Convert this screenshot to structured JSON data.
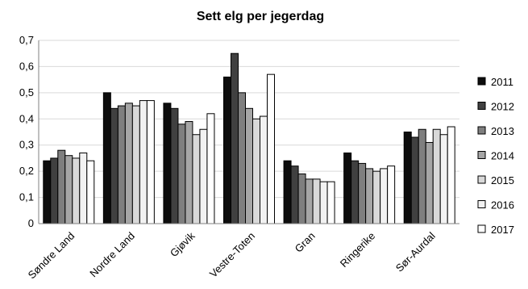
{
  "chart_data": {
    "type": "bar",
    "title": "Sett elg per jegerdag",
    "xlabel": "",
    "ylabel": "",
    "ylim": [
      0,
      0.7
    ],
    "yticks": [
      "0",
      "0,1",
      "0,2",
      "0,3",
      "0,4",
      "0,5",
      "0,6",
      "0,7"
    ],
    "grid": true,
    "legend_position": "right",
    "categories": [
      "Søndre Land",
      "Nordre Land",
      "Gjøvik",
      "Vestre-Toten",
      "Gran",
      "Ringerike",
      "Sør-Aurdal"
    ],
    "series": [
      {
        "name": "2011",
        "color": "#0d0d0d",
        "values": [
          0.24,
          0.5,
          0.46,
          0.56,
          0.24,
          0.27,
          0.35
        ]
      },
      {
        "name": "2012",
        "color": "#404040",
        "values": [
          0.25,
          0.44,
          0.44,
          0.65,
          0.22,
          0.24,
          0.33
        ]
      },
      {
        "name": "2013",
        "color": "#7f7f7f",
        "values": [
          0.28,
          0.45,
          0.38,
          0.5,
          0.19,
          0.23,
          0.36
        ]
      },
      {
        "name": "2014",
        "color": "#a6a6a6",
        "values": [
          0.26,
          0.46,
          0.39,
          0.44,
          0.17,
          0.21,
          0.31
        ]
      },
      {
        "name": "2015",
        "color": "#d9d9d9",
        "values": [
          0.25,
          0.45,
          0.34,
          0.4,
          0.17,
          0.2,
          0.36
        ]
      },
      {
        "name": "2016",
        "color": "#f2f2f2",
        "values": [
          0.27,
          0.47,
          0.36,
          0.41,
          0.16,
          0.21,
          0.34
        ]
      },
      {
        "name": "2017",
        "color": "#ffffff",
        "values": [
          0.24,
          0.47,
          0.42,
          0.57,
          0.16,
          0.22,
          0.37
        ]
      }
    ]
  }
}
